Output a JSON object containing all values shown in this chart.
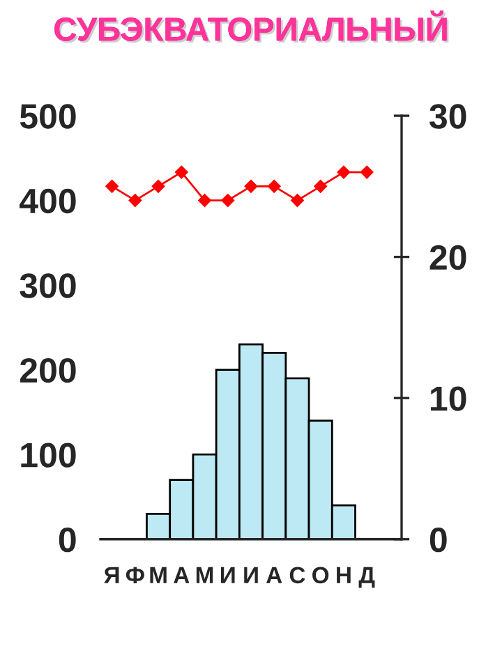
{
  "chart_data": {
    "type": "bar",
    "title": "СУБЭКВАТОРИАЛЬНЫЙ",
    "categories": [
      "Я",
      "Ф",
      "М",
      "А",
      "М",
      "И",
      "И",
      "А",
      "С",
      "О",
      "Н",
      "Д"
    ],
    "series": [
      {
        "color": "#bde9f5",
        "values": [
          0,
          0,
          30,
          70,
          100,
          200,
          230,
          220,
          190,
          140,
          40,
          0
        ]
      },
      {
        "type": "line",
        "axis": "y2",
        "color": "#ff0000",
        "marker": "diamond",
        "values": [
          25,
          24,
          25,
          26,
          24,
          24,
          25,
          25,
          24,
          25,
          26,
          26
        ]
      }
    ],
    "ylim": [
      0,
      500
    ],
    "yticks": [
      0,
      100,
      200,
      300,
      400,
      500
    ],
    "y2lim": [
      0,
      30
    ],
    "y2ticks": [
      0,
      10,
      20,
      30
    ],
    "grid": false
  }
}
